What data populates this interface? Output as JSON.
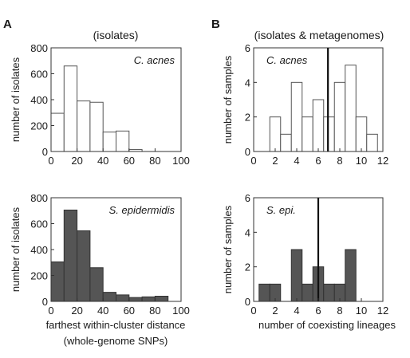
{
  "panels": {
    "a": "A",
    "b": "B"
  },
  "titles": {
    "left": "(isolates)",
    "right": "(isolates & metagenomes)"
  },
  "chart_data": [
    {
      "id": "A-top",
      "type": "bar",
      "annotation": "C. acnes",
      "ylabel": "number of isolates",
      "xlabel": "",
      "xlim": [
        0,
        100
      ],
      "ylim": [
        0,
        800
      ],
      "xticks": [
        0,
        20,
        40,
        60,
        80,
        100
      ],
      "yticks": [
        0,
        200,
        400,
        600,
        800
      ],
      "bin_width": 10,
      "bins": [
        0,
        10,
        20,
        30,
        40,
        50,
        60,
        70,
        80,
        90
      ],
      "values": [
        295,
        660,
        390,
        380,
        150,
        158,
        15,
        0,
        0,
        0
      ],
      "fill": "#ffffff",
      "stroke": "#555555"
    },
    {
      "id": "A-bottom",
      "type": "bar",
      "annotation": "S. epidermidis",
      "ylabel": "number of isolates",
      "xlabel": "farthest within-cluster distance",
      "xlabel2": "(whole-genome SNPs)",
      "xlim": [
        0,
        100
      ],
      "ylim": [
        0,
        800
      ],
      "xticks": [
        0,
        20,
        40,
        60,
        80,
        100
      ],
      "yticks": [
        0,
        200,
        400,
        600,
        800
      ],
      "bin_width": 10,
      "bins": [
        0,
        10,
        20,
        30,
        40,
        50,
        60,
        70,
        80,
        90
      ],
      "values": [
        305,
        705,
        545,
        260,
        70,
        50,
        30,
        35,
        40,
        0
      ],
      "fill": "#555555",
      "stroke": "#333333"
    },
    {
      "id": "B-top",
      "type": "bar",
      "annotation": "C. acnes",
      "ylabel": "number of samples",
      "xlabel": "",
      "xlim": [
        0,
        12
      ],
      "ylim": [
        0,
        6
      ],
      "xticks": [
        0,
        2,
        4,
        6,
        8,
        10,
        12
      ],
      "yticks": [
        0,
        2,
        4,
        6
      ],
      "bin_width": 1,
      "bins": [
        1.5,
        2.5,
        3.5,
        4.5,
        5.5,
        6.5,
        7.5,
        8.5,
        9.5,
        10.5
      ],
      "values": [
        2,
        1,
        4,
        2,
        3,
        2,
        4,
        5,
        2,
        1
      ],
      "vline": 6.9,
      "fill": "#ffffff",
      "stroke": "#555555"
    },
    {
      "id": "B-bottom",
      "type": "bar",
      "annotation": "S. epi.",
      "ylabel": "number of samples",
      "xlabel": "number of coexisting lineages",
      "xlim": [
        0,
        12
      ],
      "ylim": [
        0,
        6
      ],
      "xticks": [
        0,
        2,
        4,
        6,
        8,
        10,
        12
      ],
      "yticks": [
        0,
        2,
        4,
        6
      ],
      "bin_width": 1,
      "bins": [
        0.5,
        1.5,
        2.5,
        3.5,
        4.5,
        5.5,
        6.5,
        7.5,
        8.5,
        9.5
      ],
      "values": [
        1,
        1,
        0,
        3,
        1,
        2,
        1,
        1,
        3,
        0
      ],
      "vline": 6,
      "fill": "#555555",
      "stroke": "#333333"
    }
  ]
}
